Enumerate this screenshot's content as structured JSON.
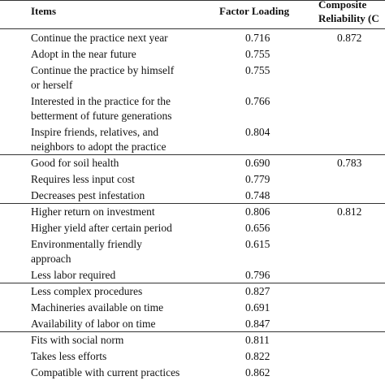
{
  "header": {
    "items": "Items",
    "factor_loading": "Factor Loading",
    "composite_reliability": [
      "Composite",
      "Reliability (C"
    ]
  },
  "groups": [
    {
      "cr": "0.872",
      "rows": [
        {
          "item": [
            "Continue the practice next year"
          ],
          "loading": "0.716"
        },
        {
          "item": [
            "Adopt in the near future"
          ],
          "loading": "0.755"
        },
        {
          "item": [
            "Continue the practice by himself",
            "or herself"
          ],
          "loading": "0.755"
        },
        {
          "item": [
            "Interested in the practice for the",
            "betterment of future generations"
          ],
          "loading": "0.766"
        },
        {
          "item": [
            "Inspire friends, relatives, and",
            "neighbors to adopt the practice"
          ],
          "loading": "0.804"
        }
      ]
    },
    {
      "cr": "0.783",
      "rows": [
        {
          "item": [
            "Good for soil health"
          ],
          "loading": "0.690"
        },
        {
          "item": [
            "Requires less input cost"
          ],
          "loading": "0.779"
        },
        {
          "item": [
            "Decreases pest infestation"
          ],
          "loading": "0.748"
        }
      ]
    },
    {
      "cr": "0.812",
      "rows": [
        {
          "item": [
            "Higher return on investment"
          ],
          "loading": "0.806"
        },
        {
          "item": [
            "Higher yield after certain period"
          ],
          "loading": "0.656"
        },
        {
          "item": [
            "Environmentally friendly",
            "approach"
          ],
          "loading": "0.615"
        },
        {
          "item": [
            "Less labor required"
          ],
          "loading": "0.796"
        }
      ]
    },
    {
      "rows": [
        {
          "item": [
            "Less complex procedures"
          ],
          "loading": "0.827"
        },
        {
          "item": [
            "Machineries available on time"
          ],
          "loading": "0.691"
        },
        {
          "item": [
            "Availability of labor on time"
          ],
          "loading": "0.847"
        }
      ]
    },
    {
      "rows": [
        {
          "item": [
            "Fits with social norm"
          ],
          "loading": "0.811"
        },
        {
          "item": [
            "Takes less efforts"
          ],
          "loading": "0.822"
        },
        {
          "item": [
            "Compatible with current practices"
          ],
          "loading": "0.862"
        }
      ]
    }
  ]
}
